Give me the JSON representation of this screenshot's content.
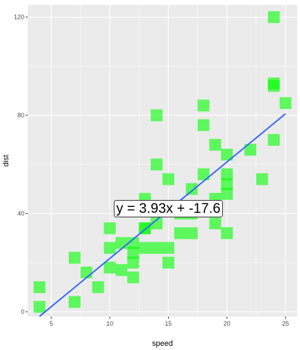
{
  "chart_data": {
    "type": "scatter",
    "xlabel": "speed",
    "ylabel": "dist",
    "xlim": [
      3.0,
      26.0
    ],
    "ylim": [
      -2.0,
      125.0
    ],
    "x_ticks": [
      5,
      10,
      15,
      20,
      25
    ],
    "y_ticks": [
      0,
      40,
      80,
      120
    ],
    "x_tick_labels": [
      "5",
      "10",
      "15",
      "20",
      "25"
    ],
    "y_tick_labels": [
      "0",
      "40",
      "80",
      "120"
    ],
    "grid": true,
    "points": [
      {
        "x": 4,
        "y": 2
      },
      {
        "x": 4,
        "y": 10
      },
      {
        "x": 7,
        "y": 4
      },
      {
        "x": 7,
        "y": 22
      },
      {
        "x": 8,
        "y": 16
      },
      {
        "x": 9,
        "y": 10
      },
      {
        "x": 10,
        "y": 18
      },
      {
        "x": 10,
        "y": 26
      },
      {
        "x": 10,
        "y": 34
      },
      {
        "x": 11,
        "y": 17
      },
      {
        "x": 11,
        "y": 28
      },
      {
        "x": 12,
        "y": 14
      },
      {
        "x": 12,
        "y": 20
      },
      {
        "x": 12,
        "y": 24
      },
      {
        "x": 12,
        "y": 28
      },
      {
        "x": 13,
        "y": 26
      },
      {
        "x": 13,
        "y": 34
      },
      {
        "x": 13,
        "y": 34
      },
      {
        "x": 13,
        "y": 46
      },
      {
        "x": 14,
        "y": 26
      },
      {
        "x": 14,
        "y": 36
      },
      {
        "x": 14,
        "y": 60
      },
      {
        "x": 14,
        "y": 80
      },
      {
        "x": 15,
        "y": 20
      },
      {
        "x": 15,
        "y": 26
      },
      {
        "x": 15,
        "y": 54
      },
      {
        "x": 16,
        "y": 32
      },
      {
        "x": 16,
        "y": 40
      },
      {
        "x": 17,
        "y": 32
      },
      {
        "x": 17,
        "y": 40
      },
      {
        "x": 17,
        "y": 50
      },
      {
        "x": 18,
        "y": 42
      },
      {
        "x": 18,
        "y": 56
      },
      {
        "x": 18,
        "y": 76
      },
      {
        "x": 18,
        "y": 84
      },
      {
        "x": 19,
        "y": 36
      },
      {
        "x": 19,
        "y": 46
      },
      {
        "x": 19,
        "y": 68
      },
      {
        "x": 20,
        "y": 32
      },
      {
        "x": 20,
        "y": 48
      },
      {
        "x": 20,
        "y": 52
      },
      {
        "x": 20,
        "y": 56
      },
      {
        "x": 20,
        "y": 64
      },
      {
        "x": 22,
        "y": 66
      },
      {
        "x": 23,
        "y": 54
      },
      {
        "x": 24,
        "y": 70
      },
      {
        "x": 24,
        "y": 92
      },
      {
        "x": 24,
        "y": 93
      },
      {
        "x": 24,
        "y": 120
      },
      {
        "x": 25,
        "y": 85
      }
    ],
    "trendline": {
      "slope": 3.93,
      "intercept": -17.6,
      "x_range": [
        4,
        25
      ]
    },
    "annotation": {
      "text": "y = 3.93x + -17.6",
      "x": 15,
      "y": 42
    },
    "colors": {
      "point": "#00ff00",
      "line": "#3366ff",
      "panel": "#ebebeb",
      "grid": "#ffffff"
    }
  }
}
